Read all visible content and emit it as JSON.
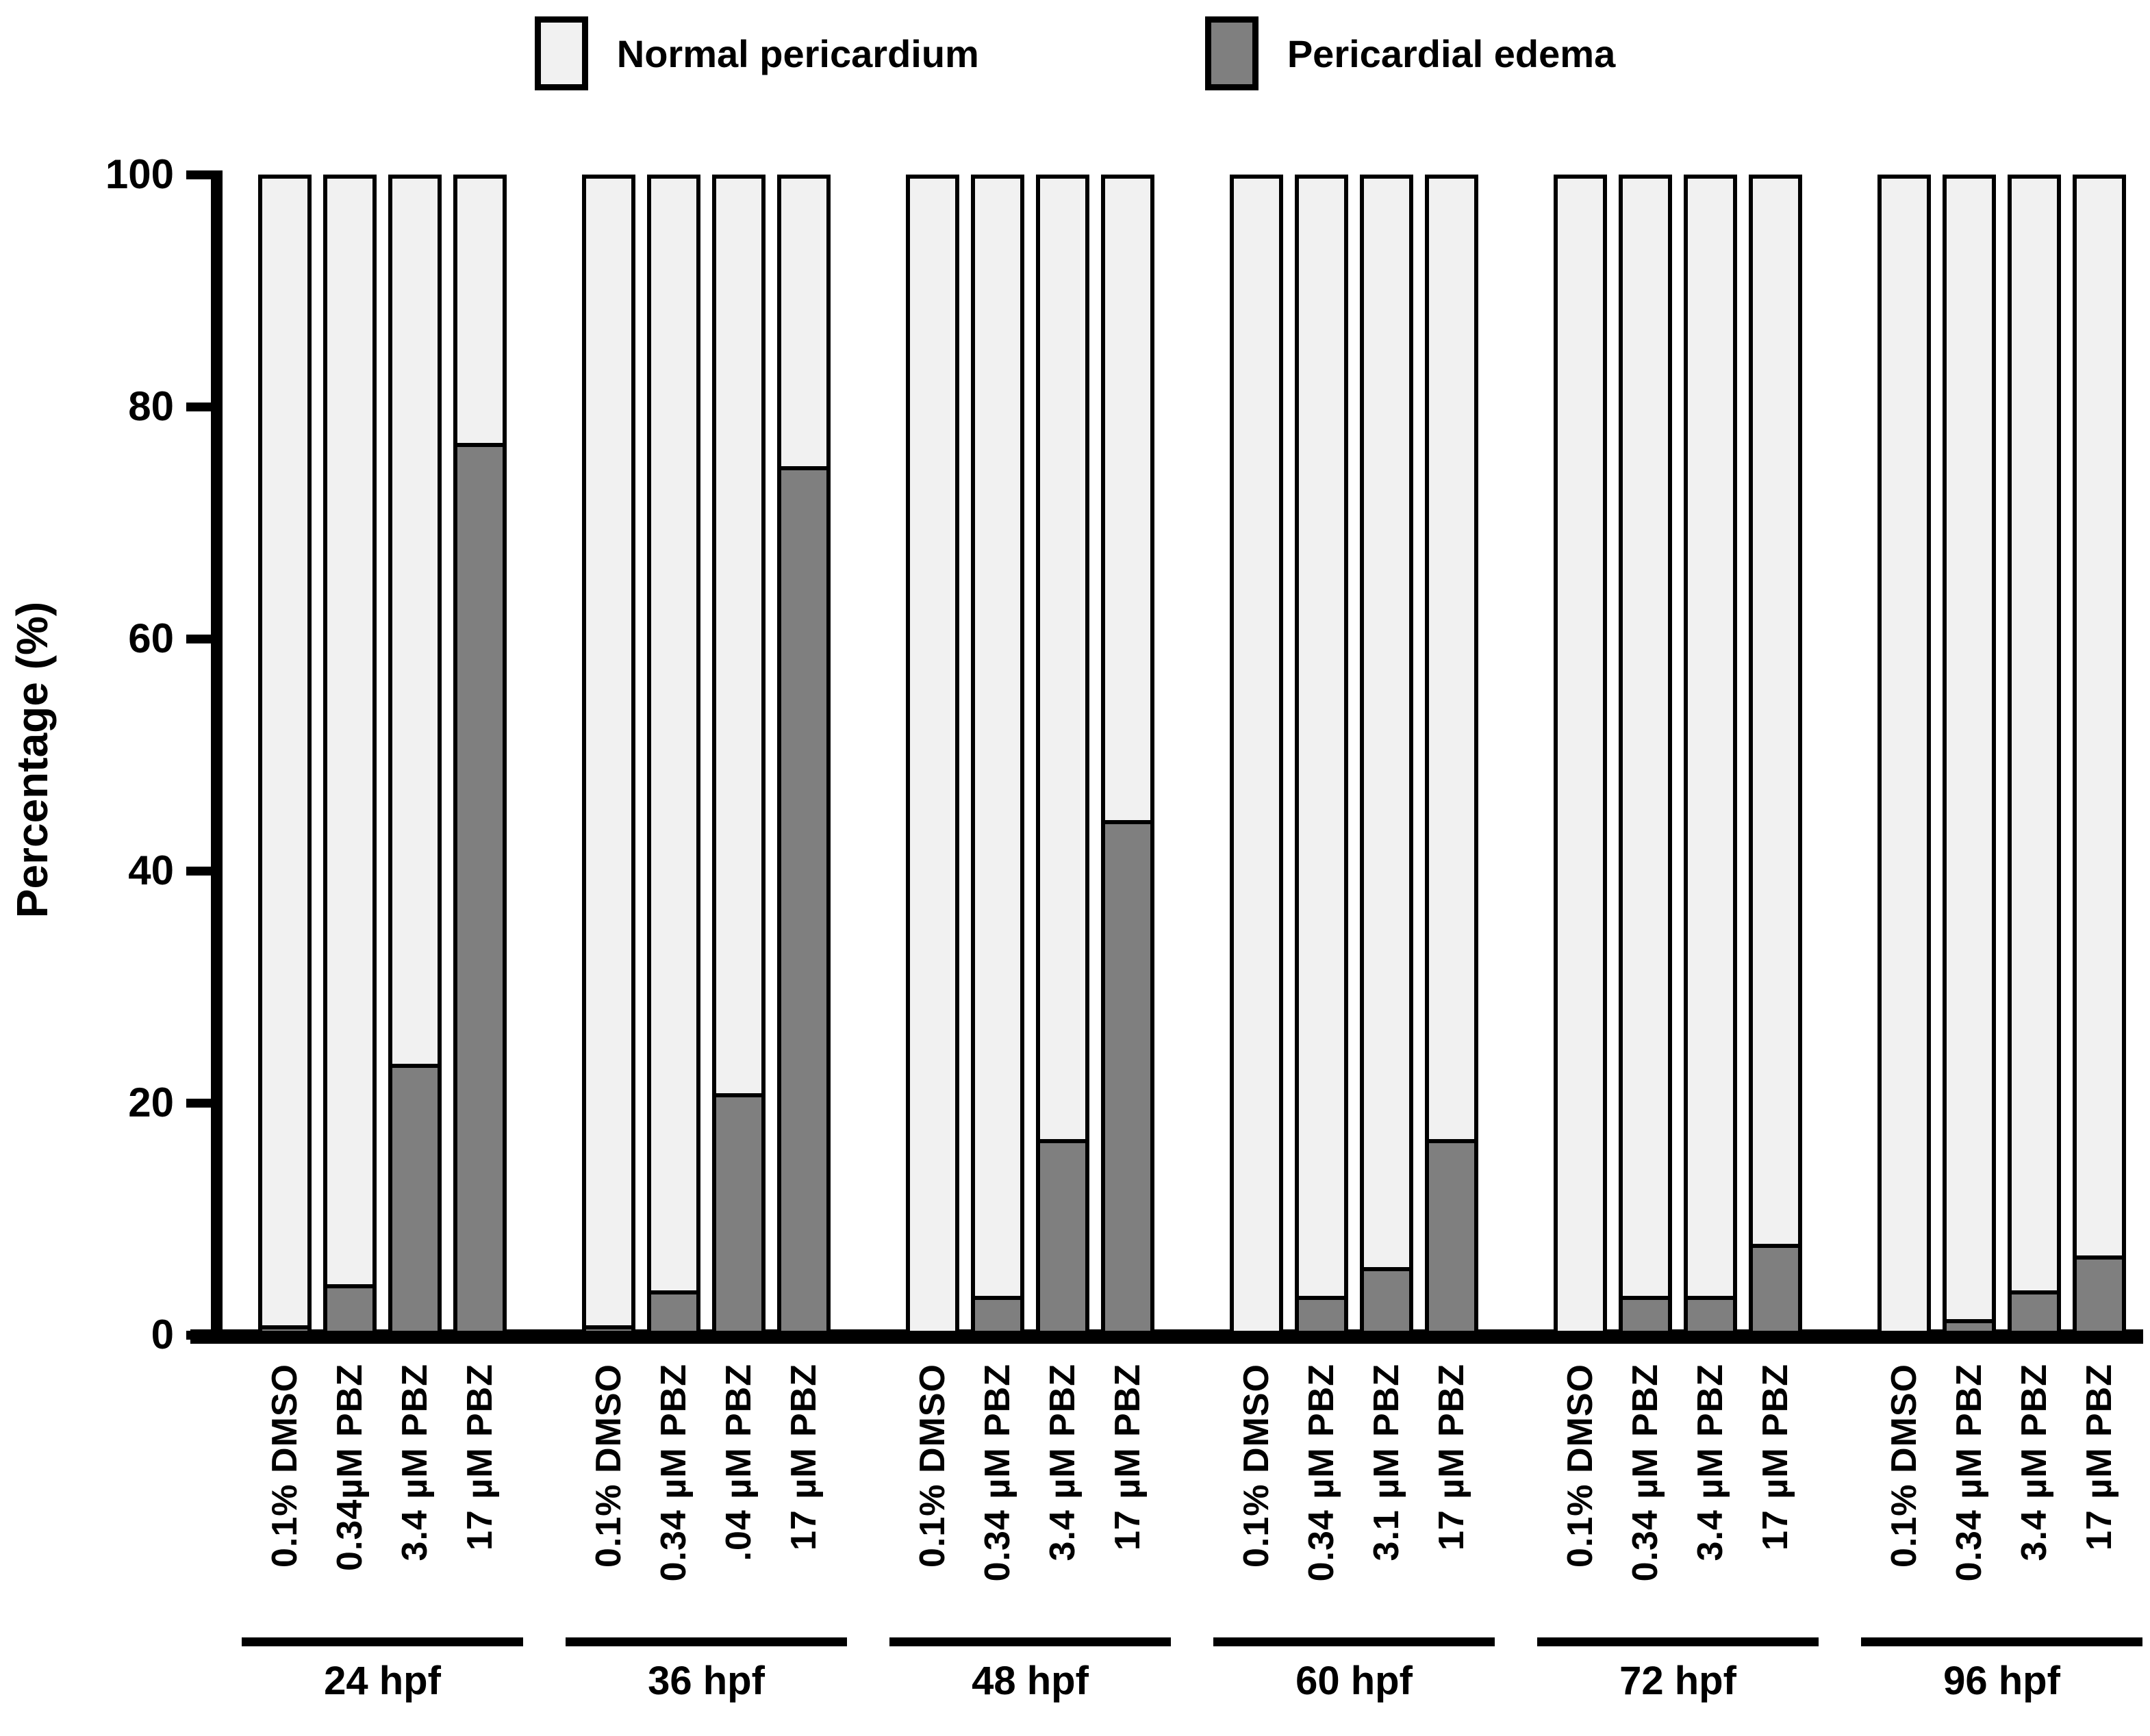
{
  "legend": {
    "items": [
      {
        "label": "Normal pericardium",
        "swatch": "normal-pericardium-swatch",
        "color": "#f1f1f1"
      },
      {
        "label": "Pericardial edema",
        "swatch": "pericardial-edema-swatch",
        "color": "#7f7f7f"
      }
    ]
  },
  "y_axis": {
    "label": "Percentage (%)",
    "ticks": [
      0,
      20,
      40,
      60,
      80,
      100
    ]
  },
  "colors": {
    "background": "#ffffff",
    "axis": "#000000",
    "normal_fill": "#f1f1f1",
    "edema_fill": "#7f7f7f",
    "outline": "#000000"
  },
  "chart_data": {
    "type": "bar",
    "stacked": true,
    "title": "",
    "xlabel": "",
    "ylabel": "Percentage (%)",
    "ylim": [
      0,
      100
    ],
    "grid": false,
    "legend_position": "top-center",
    "series": [
      {
        "name": "Normal pericardium",
        "color": "#f1f1f1"
      },
      {
        "name": "Pericardial edema",
        "color": "#7f7f7f"
      }
    ],
    "groups": [
      {
        "label": "24 hpf",
        "bars": [
          {
            "label": "0.1% DMSO",
            "normal": 99.5,
            "edema": 0.5
          },
          {
            "label": "0.34µM PBZ",
            "normal": 96.0,
            "edema": 4.0
          },
          {
            "label": "3.4 µM PBZ",
            "normal": 77.0,
            "edema": 23.0
          },
          {
            "label": "17 µM PBZ",
            "normal": 23.5,
            "edema": 76.5
          }
        ]
      },
      {
        "label": "36 hpf",
        "bars": [
          {
            "label": "0.1% DMSO",
            "normal": 99.5,
            "edema": 0.5
          },
          {
            "label": "0.34 µM PBZ",
            "normal": 96.5,
            "edema": 3.5
          },
          {
            "label": ".04 µM PBZ",
            "normal": 79.5,
            "edema": 20.5
          },
          {
            "label": "17 µM PBZ",
            "normal": 25.5,
            "edema": 74.5
          }
        ]
      },
      {
        "label": "48 hpf",
        "bars": [
          {
            "label": "0.1% DMSO",
            "normal": 100.0,
            "edema": 0.0
          },
          {
            "label": "0.34 µM PBZ",
            "normal": 97.0,
            "edema": 3.0
          },
          {
            "label": "3.4 µM PBZ",
            "normal": 83.5,
            "edema": 16.5
          },
          {
            "label": "17 µM PBZ",
            "normal": 56.0,
            "edema": 44.0
          }
        ]
      },
      {
        "label": "60 hpf",
        "bars": [
          {
            "label": "0.1% DMSO",
            "normal": 100.0,
            "edema": 0.0
          },
          {
            "label": "0.34 µM PBZ",
            "normal": 97.0,
            "edema": 3.0
          },
          {
            "label": "3.1 µM PBZ",
            "normal": 94.5,
            "edema": 5.5
          },
          {
            "label": "17 µM PBZ",
            "normal": 83.5,
            "edema": 16.5
          }
        ]
      },
      {
        "label": "72 hpf",
        "bars": [
          {
            "label": "0.1% DMSO",
            "normal": 100.0,
            "edema": 0.0
          },
          {
            "label": "0.34 µM PBZ",
            "normal": 97.0,
            "edema": 3.0
          },
          {
            "label": "3.4 µM PBZ",
            "normal": 97.0,
            "edema": 3.0
          },
          {
            "label": "17 µM PBZ",
            "normal": 92.5,
            "edema": 7.5
          }
        ]
      },
      {
        "label": "96 hpf",
        "bars": [
          {
            "label": "0.1% DMSO",
            "normal": 100.0,
            "edema": 0.0
          },
          {
            "label": "0.34 µM PBZ",
            "normal": 99.0,
            "edema": 1.0
          },
          {
            "label": "3.4 µM PBZ",
            "normal": 96.5,
            "edema": 3.5
          },
          {
            "label": "17 µM PBZ",
            "normal": 93.5,
            "edema": 6.5
          }
        ]
      }
    ]
  }
}
